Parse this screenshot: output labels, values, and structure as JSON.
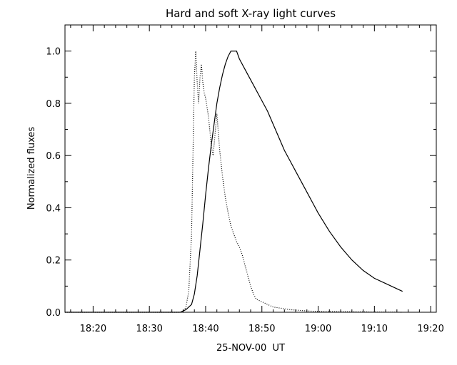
{
  "chart_data": {
    "type": "line",
    "title": "Hard and soft X-ray light curves",
    "xlabel": "25-NOV-00  UT",
    "ylabel": "Normalized fluxes",
    "x_unit": "UT (HH:MM)",
    "xlim": [
      "18:15",
      "19:21"
    ],
    "ylim": [
      0,
      1.1
    ],
    "x_ticks": [
      "18:20",
      "18:30",
      "18:40",
      "18:50",
      "19:00",
      "19:10",
      "19:20"
    ],
    "y_ticks": [
      "0.0",
      "0.2",
      "0.4",
      "0.6",
      "0.8",
      "1.0"
    ],
    "grid": false,
    "series": [
      {
        "style": "solid",
        "color": "#000000",
        "points": [
          [
            "18:15:00",
            0.0
          ],
          [
            "18:30:00",
            0.0
          ],
          [
            "18:35:30",
            0.0
          ],
          [
            "18:36:30",
            0.01
          ],
          [
            "18:37:30",
            0.03
          ],
          [
            "18:38:00",
            0.07
          ],
          [
            "18:38:30",
            0.14
          ],
          [
            "18:39:00",
            0.24
          ],
          [
            "18:39:30",
            0.34
          ],
          [
            "18:40:00",
            0.45
          ],
          [
            "18:40:30",
            0.55
          ],
          [
            "18:41:00",
            0.64
          ],
          [
            "18:41:30",
            0.72
          ],
          [
            "18:42:00",
            0.8
          ],
          [
            "18:42:30",
            0.86
          ],
          [
            "18:43:00",
            0.91
          ],
          [
            "18:43:30",
            0.95
          ],
          [
            "18:44:00",
            0.98
          ],
          [
            "18:44:30",
            1.0
          ],
          [
            "18:45:30",
            1.0
          ],
          [
            "18:46:00",
            0.97
          ],
          [
            "18:47:00",
            0.93
          ],
          [
            "18:48:00",
            0.89
          ],
          [
            "18:49:00",
            0.85
          ],
          [
            "18:50:00",
            0.81
          ],
          [
            "18:51:00",
            0.77
          ],
          [
            "18:52:00",
            0.72
          ],
          [
            "18:53:00",
            0.67
          ],
          [
            "18:54:00",
            0.62
          ],
          [
            "18:55:00",
            0.58
          ],
          [
            "18:56:00",
            0.54
          ],
          [
            "18:57:00",
            0.5
          ],
          [
            "18:58:00",
            0.46
          ],
          [
            "18:59:00",
            0.42
          ],
          [
            "19:00:00",
            0.38
          ],
          [
            "19:02:00",
            0.31
          ],
          [
            "19:04:00",
            0.25
          ],
          [
            "19:06:00",
            0.2
          ],
          [
            "19:08:00",
            0.16
          ],
          [
            "19:10:00",
            0.13
          ],
          [
            "19:12:00",
            0.11
          ],
          [
            "19:14:00",
            0.09
          ],
          [
            "19:15:00",
            0.08
          ]
        ]
      },
      {
        "style": "dotted",
        "color": "#000000",
        "points": [
          [
            "18:15:00",
            0.0
          ],
          [
            "18:36:00",
            0.0
          ],
          [
            "18:36:30",
            0.02
          ],
          [
            "18:37:00",
            0.08
          ],
          [
            "18:37:30",
            0.3
          ],
          [
            "18:37:45",
            0.6
          ],
          [
            "18:38:00",
            0.9
          ],
          [
            "18:38:15",
            1.0
          ],
          [
            "18:38:30",
            0.88
          ],
          [
            "18:38:45",
            0.8
          ],
          [
            "18:39:00",
            0.9
          ],
          [
            "18:39:15",
            0.95
          ],
          [
            "18:39:30",
            0.88
          ],
          [
            "18:39:45",
            0.84
          ],
          [
            "18:40:00",
            0.82
          ],
          [
            "18:40:30",
            0.75
          ],
          [
            "18:41:00",
            0.64
          ],
          [
            "18:41:20",
            0.6
          ],
          [
            "18:41:40",
            0.68
          ],
          [
            "18:42:00",
            0.76
          ],
          [
            "18:42:30",
            0.62
          ],
          [
            "18:43:00",
            0.52
          ],
          [
            "18:43:30",
            0.44
          ],
          [
            "18:44:00",
            0.38
          ],
          [
            "18:44:30",
            0.33
          ],
          [
            "18:45:00",
            0.3
          ],
          [
            "18:45:30",
            0.27
          ],
          [
            "18:46:00",
            0.25
          ],
          [
            "18:46:30",
            0.22
          ],
          [
            "18:47:00",
            0.18
          ],
          [
            "18:47:30",
            0.14
          ],
          [
            "18:48:00",
            0.1
          ],
          [
            "18:48:30",
            0.07
          ],
          [
            "18:49:00",
            0.05
          ],
          [
            "18:50:00",
            0.04
          ],
          [
            "18:52:00",
            0.02
          ],
          [
            "18:55:00",
            0.01
          ],
          [
            "18:58:00",
            0.005
          ],
          [
            "19:00:00",
            0.003
          ],
          [
            "19:05:00",
            0.002
          ],
          [
            "19:10:00",
            0.001
          ],
          [
            "19:15:00",
            0.0
          ]
        ]
      }
    ]
  }
}
